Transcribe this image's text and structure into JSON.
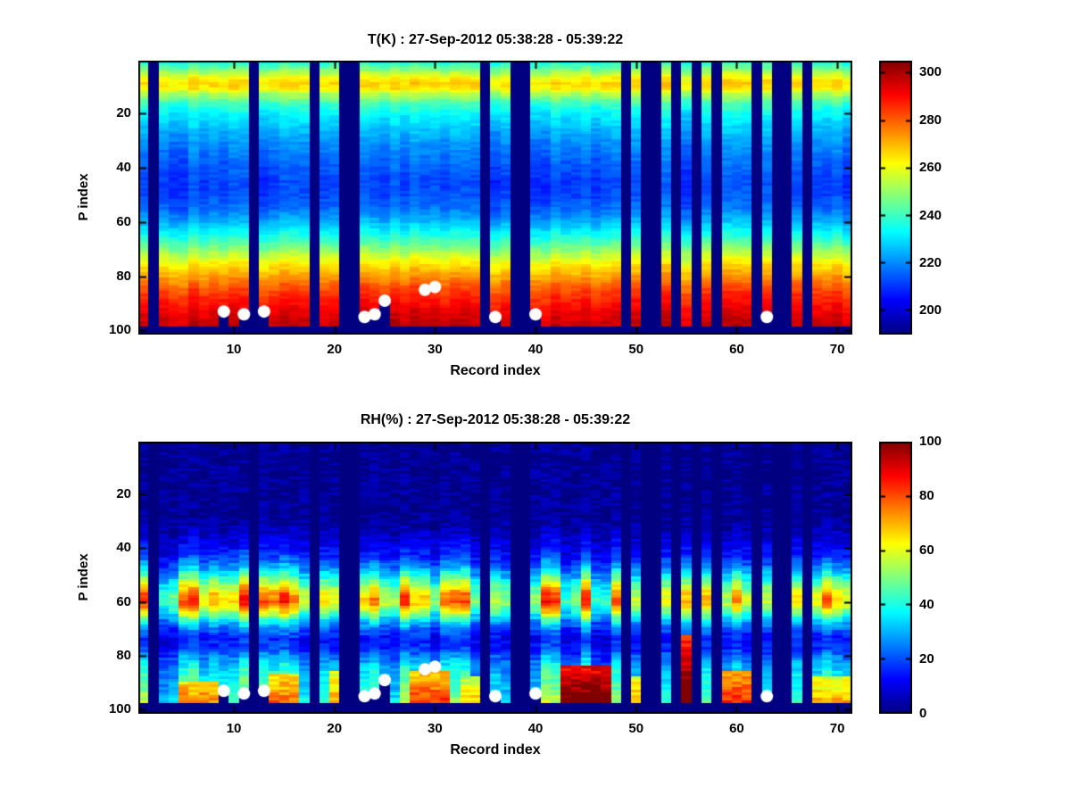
{
  "figure": {
    "background": "#ffffff"
  },
  "chart_data": [
    {
      "type": "heatmap",
      "title": "T(K) : 27-Sep-2012 05:38:28 - 05:39:22",
      "xlabel": "Record index",
      "ylabel": "P index",
      "x_ticks": [
        10,
        20,
        30,
        40,
        50,
        60,
        70
      ],
      "y_ticks": [
        20,
        40,
        60,
        80,
        100
      ],
      "n_records": 71,
      "n_levels": 101,
      "y_axis_reversed": true,
      "grid": false,
      "colormap": "jet",
      "value_range": [
        190,
        305
      ],
      "colorbar_ticks": [
        200,
        220,
        240,
        260,
        280,
        300
      ],
      "colorbar_position": "right",
      "missing_records": [
        2,
        12,
        18,
        21,
        22,
        35,
        38,
        39,
        49,
        51,
        52,
        54,
        56,
        58,
        62,
        64,
        65,
        67
      ],
      "navy_bottom_from": 99,
      "profile": {
        "p": [
          1,
          3,
          5,
          7,
          9,
          11,
          13,
          16,
          20,
          25,
          31,
          38,
          45,
          50,
          55,
          60,
          64,
          68,
          72,
          76,
          80,
          84,
          88,
          92,
          96,
          101
        ],
        "v": [
          236,
          243,
          252,
          261,
          266,
          263,
          252,
          240,
          232,
          226,
          220,
          215,
          211,
          212,
          216,
          224,
          233,
          243,
          254,
          264,
          272,
          280,
          286,
          291,
          295,
          298
        ]
      },
      "white_dots": [
        {
          "record": 9,
          "p": 93
        },
        {
          "record": 11,
          "p": 94
        },
        {
          "record": 13,
          "p": 93
        },
        {
          "record": 23,
          "p": 95
        },
        {
          "record": 24,
          "p": 94
        },
        {
          "record": 25,
          "p": 89
        },
        {
          "record": 29,
          "p": 85
        },
        {
          "record": 30,
          "p": 84
        },
        {
          "record": 36,
          "p": 95
        },
        {
          "record": 40,
          "p": 94
        },
        {
          "record": 63,
          "p": 95
        }
      ]
    },
    {
      "type": "heatmap",
      "title": "RH(%) : 27-Sep-2012 05:38:28 - 05:39:22",
      "xlabel": "Record index",
      "ylabel": "P index",
      "x_ticks": [
        10,
        20,
        30,
        40,
        50,
        60,
        70
      ],
      "y_ticks": [
        20,
        40,
        60,
        80,
        100
      ],
      "n_records": 71,
      "n_levels": 101,
      "y_axis_reversed": true,
      "grid": false,
      "colormap": "jet",
      "value_range": [
        0,
        100
      ],
      "colorbar_ticks": [
        0,
        20,
        40,
        60,
        80,
        100
      ],
      "colorbar_position": "right",
      "missing_records": [
        2,
        12,
        18,
        21,
        22,
        35,
        38,
        39,
        49,
        51,
        52,
        54,
        56,
        58,
        62,
        64,
        65,
        67
      ],
      "navy_bottom_from": 98,
      "profile": {
        "p": [
          1,
          28,
          33,
          38,
          43,
          47,
          51,
          54,
          57,
          60,
          62,
          65,
          68,
          71,
          74,
          77,
          80,
          83,
          86,
          89,
          92,
          95,
          97,
          101
        ],
        "v": [
          2,
          2,
          5,
          10,
          16,
          26,
          40,
          52,
          62,
          66,
          60,
          45,
          30,
          20,
          14,
          16,
          24,
          30,
          34,
          36,
          38,
          42,
          45,
          46
        ]
      },
      "hotspots": [
        {
          "r0": 43,
          "r1": 47,
          "p0": 84,
          "p1": 98,
          "v": 88
        },
        {
          "r0": 55,
          "r1": 55,
          "p0": 73,
          "p1": 97,
          "v": 82
        },
        {
          "r0": 59,
          "r1": 61,
          "p0": 86,
          "p1": 97,
          "v": 70
        },
        {
          "r0": 5,
          "r1": 8,
          "p0": 90,
          "p1": 98,
          "v": 66
        },
        {
          "r0": 14,
          "r1": 16,
          "p0": 87,
          "p1": 98,
          "v": 64
        },
        {
          "r0": 28,
          "r1": 31,
          "p0": 86,
          "p1": 97,
          "v": 68
        },
        {
          "r0": 33,
          "r1": 34,
          "p0": 88,
          "p1": 97,
          "v": 55
        },
        {
          "r0": 20,
          "r1": 20,
          "p0": 86,
          "p1": 97,
          "v": 58
        },
        {
          "r0": 50,
          "r1": 50,
          "p0": 88,
          "p1": 97,
          "v": 60
        },
        {
          "r0": 68,
          "r1": 71,
          "p0": 88,
          "p1": 97,
          "v": 58
        }
      ],
      "white_dots": [
        {
          "record": 9,
          "p": 93
        },
        {
          "record": 11,
          "p": 94
        },
        {
          "record": 13,
          "p": 93
        },
        {
          "record": 23,
          "p": 95
        },
        {
          "record": 24,
          "p": 94
        },
        {
          "record": 25,
          "p": 89
        },
        {
          "record": 29,
          "p": 85
        },
        {
          "record": 30,
          "p": 84
        },
        {
          "record": 36,
          "p": 95
        },
        {
          "record": 40,
          "p": 94
        },
        {
          "record": 63,
          "p": 95
        }
      ]
    }
  ]
}
